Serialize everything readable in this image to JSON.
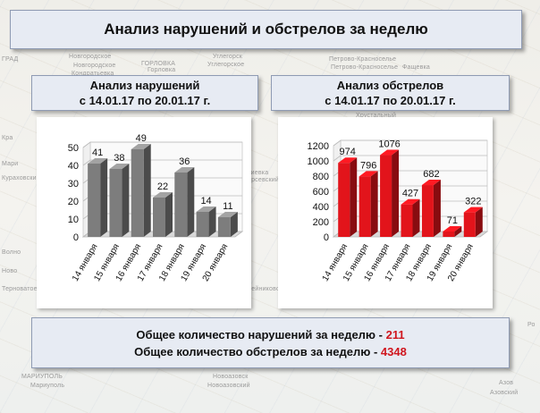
{
  "slide": {
    "title": "Анализ нарушений и обстрелов за неделю"
  },
  "map_labels": [
    {
      "text": "ГРАД",
      "pos": [
        2,
        63
      ]
    },
    {
      "text": "Новгородское",
      "pos": [
        77,
        60
      ]
    },
    {
      "text": "Новгородское",
      "pos": [
        82,
        70
      ]
    },
    {
      "text": "ГОРЛОВКА",
      "pos": [
        158,
        68
      ]
    },
    {
      "text": "Горловка",
      "pos": [
        165,
        75
      ]
    },
    {
      "text": "Углегорск",
      "pos": [
        238,
        60
      ]
    },
    {
      "text": "Углегорское",
      "pos": [
        232,
        69
      ]
    },
    {
      "text": "Кондратьевка",
      "pos": [
        80,
        79
      ]
    },
    {
      "text": "Петрово-Красноселье",
      "pos": [
        368,
        63
      ]
    },
    {
      "text": "Петрово-Красноселье",
      "pos": [
        370,
        72
      ]
    },
    {
      "text": "Фащевка",
      "pos": [
        450,
        72
      ]
    },
    {
      "text": "Хрустальный",
      "pos": [
        398,
        126
      ]
    },
    {
      "text": "Кра",
      "pos": [
        2,
        151
      ]
    },
    {
      "text": "Мари",
      "pos": [
        2,
        180
      ]
    },
    {
      "text": "Кураховский",
      "pos": [
        2,
        196
      ]
    },
    {
      "text": "Волно",
      "pos": [
        2,
        279
      ]
    },
    {
      "text": "Ново",
      "pos": [
        2,
        300
      ]
    },
    {
      "text": "Терноватое",
      "pos": [
        2,
        320
      ]
    },
    {
      "text": "Амвросиевка",
      "pos": [
        255,
        190
      ]
    },
    {
      "text": "Хаирсевский",
      "pos": [
        268,
        198
      ]
    },
    {
      "text": "Кутейниково",
      "pos": [
        270,
        320
      ]
    },
    {
      "text": "Ро",
      "pos": [
        590,
        360
      ]
    },
    {
      "text": "МАРИУПОЛЬ",
      "pos": [
        24,
        418
      ]
    },
    {
      "text": "Мариуполь",
      "pos": [
        34,
        428
      ]
    },
    {
      "text": "Новоазовск",
      "pos": [
        238,
        418
      ]
    },
    {
      "text": "Новоазовский",
      "pos": [
        232,
        428
      ]
    },
    {
      "text": "Азов",
      "pos": [
        558,
        425
      ]
    },
    {
      "text": "Азовский",
      "pos": [
        548,
        436
      ]
    }
  ],
  "headers": {
    "violations": {
      "line1": "Анализ нарушений",
      "line2": "с 14.01.17 по 20.01.17 г."
    },
    "shelling": {
      "line1": "Анализ обстрелов",
      "line2": "с 14.01.17 по 20.01.17 г."
    }
  },
  "summary": {
    "violations_label": "Общее количество нарушений за неделю - ",
    "violations_total": "211",
    "shelling_label": "Общее количество обстрелов за неделю - ",
    "shelling_total": "4348"
  },
  "chart_data": [
    {
      "type": "bar",
      "categories": [
        "14 января",
        "15 января",
        "16 января",
        "17 января",
        "18 января",
        "19 января",
        "20 января"
      ],
      "values": [
        41,
        38,
        49,
        22,
        36,
        14,
        11
      ],
      "ylim": [
        0,
        50
      ],
      "yticks": [
        0,
        10,
        20,
        30,
        40,
        50
      ],
      "color": "#7d7d7d",
      "grid": true,
      "style": "3d"
    },
    {
      "type": "bar",
      "categories": [
        "14 января",
        "15 января",
        "16 января",
        "17 января",
        "18 января",
        "19 января",
        "20 января"
      ],
      "values": [
        974,
        796,
        1076,
        427,
        682,
        71,
        322
      ],
      "ylim": [
        0,
        1200
      ],
      "yticks": [
        0,
        200,
        400,
        600,
        800,
        1000,
        1200
      ],
      "color": "#e2141b",
      "grid": true,
      "style": "3d"
    }
  ]
}
